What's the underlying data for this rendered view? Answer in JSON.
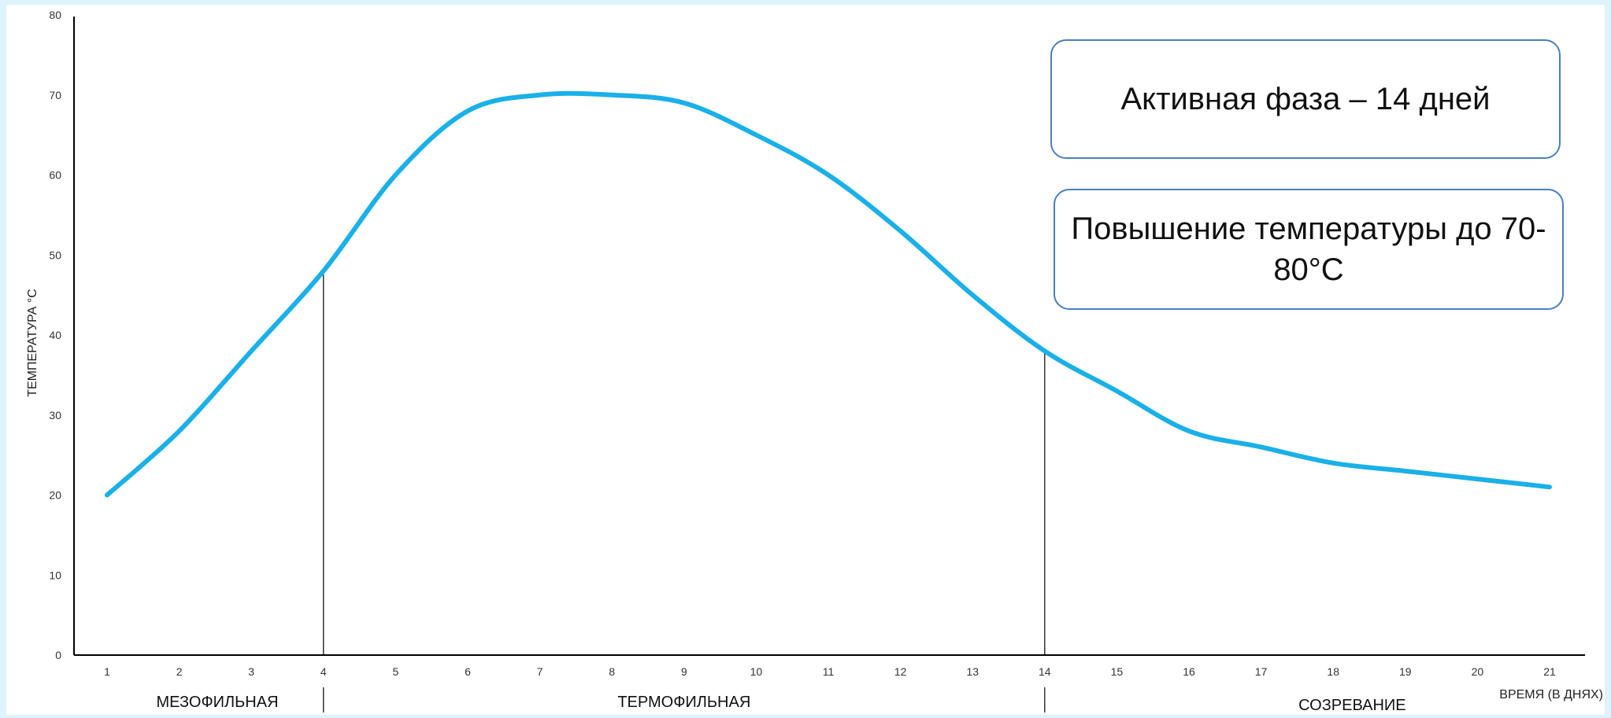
{
  "chart_data": {
    "type": "line",
    "title": "",
    "xlabel": "ВРЕМЯ (В ДНЯХ)",
    "ylabel": "ТЕМПЕРАТУРА °C",
    "ylim": [
      0,
      80
    ],
    "xlim": [
      1,
      21
    ],
    "yticks": [
      0,
      10,
      20,
      30,
      40,
      50,
      60,
      70,
      80
    ],
    "xticks": [
      1,
      2,
      3,
      4,
      5,
      6,
      7,
      8,
      9,
      10,
      11,
      12,
      13,
      14,
      15,
      16,
      17,
      18,
      19,
      20,
      21
    ],
    "grid": false,
    "legend": "none",
    "line_color": "#1ab0e8",
    "series": [
      {
        "x": [
          1,
          2,
          3,
          4,
          5,
          6,
          7,
          8,
          9,
          10,
          11,
          12,
          13,
          14,
          15,
          16,
          17,
          18,
          19,
          20,
          21
        ],
        "values": [
          20,
          28,
          38,
          48,
          60,
          68,
          70,
          70,
          69,
          65,
          60,
          53,
          45,
          38,
          33,
          28,
          26,
          24,
          23,
          22,
          21
        ]
      }
    ],
    "phase_dividers": [
      4,
      14
    ],
    "phases": [
      "МЕЗОФИЛЬНАЯ",
      "ТЕРМОФИЛЬНАЯ",
      "СОЗРЕВАНИЕ"
    ]
  },
  "callouts": {
    "active_phase": "Активная фаза – 14 дней",
    "temperature_rise": "Повышение температуры до 70-80°C"
  }
}
